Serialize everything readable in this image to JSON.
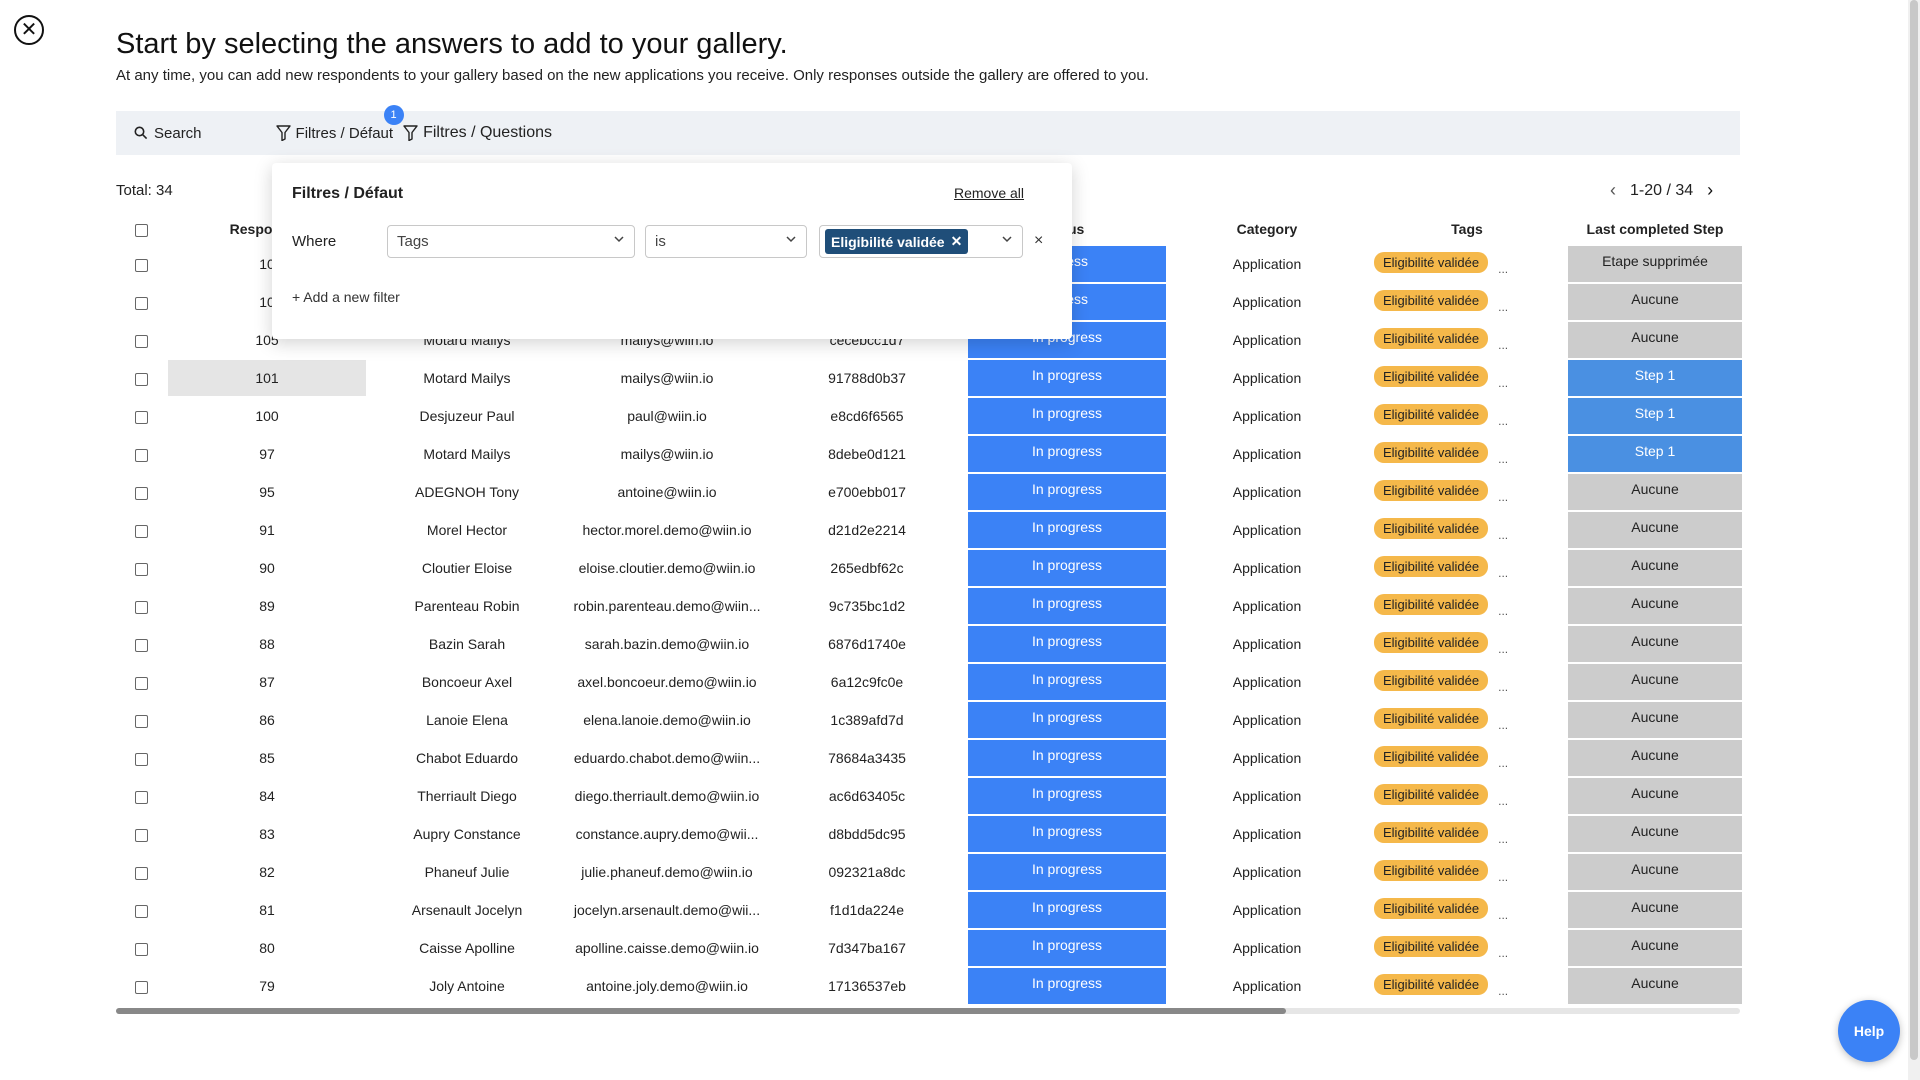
{
  "header": {
    "title": "Start by selecting the answers to add to your gallery.",
    "subtitle": "At any time, you can add new respondents to your gallery based on the new applications you receive. Only responses outside the gallery are offered to you."
  },
  "toolbar": {
    "search_label": "Search",
    "filter_defaut_label": "Filtres / Défaut",
    "filter_defaut_badge": "1",
    "filter_questions_label": "Filtres / Questions"
  },
  "total": "Total: 34",
  "pagination": {
    "range": "1-20 / 34"
  },
  "filter_panel": {
    "title": "Filtres / Défaut",
    "remove_all": "Remove all",
    "where": "Where",
    "field": "Tags",
    "operator": "is",
    "value_chip": "Eligibilité validée",
    "add_filter": "+ Add a new filter"
  },
  "table": {
    "columns": [
      "",
      "Responses",
      "",
      "",
      "",
      "Status",
      "Category",
      "Tags",
      "Last completed Step"
    ],
    "status_header_visible": "us",
    "rows": [
      {
        "id": "10",
        "name": "",
        "email": "",
        "code": "",
        "status": "ogress",
        "category": "Application",
        "tag": "Eligibilité validée",
        "step": "Etape supprimée",
        "step_style": "grey"
      },
      {
        "id": "10",
        "name": "",
        "email": "",
        "code": "",
        "status": "ogress",
        "category": "Application",
        "tag": "Eligibilité validée",
        "step": "Aucune",
        "step_style": "grey"
      },
      {
        "id": "105",
        "name": "Motard Mailys",
        "email": "mailys@wiin.io",
        "code": "cecebcc1d7",
        "status": "In progress",
        "category": "Application",
        "tag": "Eligibilité validée",
        "step": "Aucune",
        "step_style": "grey"
      },
      {
        "id": "101",
        "name": "Motard Mailys",
        "email": "mailys@wiin.io",
        "code": "91788d0b37",
        "status": "In progress",
        "category": "Application",
        "tag": "Eligibilité validée",
        "step": "Step 1",
        "step_style": "blue"
      },
      {
        "id": "100",
        "name": "Desjuzeur Paul",
        "email": "paul@wiin.io",
        "code": "e8cd6f6565",
        "status": "In progress",
        "category": "Application",
        "tag": "Eligibilité validée",
        "step": "Step 1",
        "step_style": "blue"
      },
      {
        "id": "97",
        "name": "Motard Mailys",
        "email": "mailys@wiin.io",
        "code": "8debe0d121",
        "status": "In progress",
        "category": "Application",
        "tag": "Eligibilité validée",
        "step": "Step 1",
        "step_style": "blue"
      },
      {
        "id": "95",
        "name": "ADEGNOH Tony",
        "email": "antoine@wiin.io",
        "code": "e700ebb017",
        "status": "In progress",
        "category": "Application",
        "tag": "Eligibilité validée",
        "step": "Aucune",
        "step_style": "grey"
      },
      {
        "id": "91",
        "name": "Morel Hector",
        "email": "hector.morel.demo@wiin.io",
        "code": "d21d2e2214",
        "status": "In progress",
        "category": "Application",
        "tag": "Eligibilité validée",
        "step": "Aucune",
        "step_style": "grey"
      },
      {
        "id": "90",
        "name": "Cloutier Eloise",
        "email": "eloise.cloutier.demo@wiin.io",
        "code": "265edbf62c",
        "status": "In progress",
        "category": "Application",
        "tag": "Eligibilité validée",
        "step": "Aucune",
        "step_style": "grey"
      },
      {
        "id": "89",
        "name": "Parenteau Robin",
        "email": "robin.parenteau.demo@wiin...",
        "code": "9c735bc1d2",
        "status": "In progress",
        "category": "Application",
        "tag": "Eligibilité validée",
        "step": "Aucune",
        "step_style": "grey"
      },
      {
        "id": "88",
        "name": "Bazin Sarah",
        "email": "sarah.bazin.demo@wiin.io",
        "code": "6876d1740e",
        "status": "In progress",
        "category": "Application",
        "tag": "Eligibilité validée",
        "step": "Aucune",
        "step_style": "grey"
      },
      {
        "id": "87",
        "name": "Boncoeur Axel",
        "email": "axel.boncoeur.demo@wiin.io",
        "code": "6a12c9fc0e",
        "status": "In progress",
        "category": "Application",
        "tag": "Eligibilité validée",
        "step": "Aucune",
        "step_style": "grey"
      },
      {
        "id": "86",
        "name": "Lanoie Elena",
        "email": "elena.lanoie.demo@wiin.io",
        "code": "1c389afd7d",
        "status": "In progress",
        "category": "Application",
        "tag": "Eligibilité validée",
        "step": "Aucune",
        "step_style": "grey"
      },
      {
        "id": "85",
        "name": "Chabot Eduardo",
        "email": "eduardo.chabot.demo@wiin...",
        "code": "78684a3435",
        "status": "In progress",
        "category": "Application",
        "tag": "Eligibilité validée",
        "step": "Aucune",
        "step_style": "grey"
      },
      {
        "id": "84",
        "name": "Therriault Diego",
        "email": "diego.therriault.demo@wiin.io",
        "code": "ac6d63405c",
        "status": "In progress",
        "category": "Application",
        "tag": "Eligibilité validée",
        "step": "Aucune",
        "step_style": "grey"
      },
      {
        "id": "83",
        "name": "Aupry Constance",
        "email": "constance.aupry.demo@wii...",
        "code": "d8bdd5dc95",
        "status": "In progress",
        "category": "Application",
        "tag": "Eligibilité validée",
        "step": "Aucune",
        "step_style": "grey"
      },
      {
        "id": "82",
        "name": "Phaneuf Julie",
        "email": "julie.phaneuf.demo@wiin.io",
        "code": "092321a8dc",
        "status": "In progress",
        "category": "Application",
        "tag": "Eligibilité validée",
        "step": "Aucune",
        "step_style": "grey"
      },
      {
        "id": "81",
        "name": "Arsenault Jocelyn",
        "email": "jocelyn.arsenault.demo@wii...",
        "code": "f1d1da224e",
        "status": "In progress",
        "category": "Application",
        "tag": "Eligibilité validée",
        "step": "Aucune",
        "step_style": "grey"
      },
      {
        "id": "80",
        "name": "Caisse Apolline",
        "email": "apolline.caisse.demo@wiin.io",
        "code": "7d347ba167",
        "status": "In progress",
        "category": "Application",
        "tag": "Eligibilité validée",
        "step": "Aucune",
        "step_style": "grey"
      },
      {
        "id": "79",
        "name": "Joly Antoine",
        "email": "antoine.joly.demo@wiin.io",
        "code": "17136537eb",
        "status": "In progress",
        "category": "Application",
        "tag": "Eligibilité validée",
        "step": "Aucune",
        "step_style": "grey"
      }
    ],
    "more_label": "..."
  },
  "help": {
    "label": "Help"
  },
  "colors": {
    "status_blue": "#3b82f6",
    "step_blue": "#4a90e2",
    "step_grey": "#cccccc",
    "tag_orange": "#f5b84a",
    "chip_navy": "#1f4e79"
  },
  "icons": {
    "close": "circle-x-icon",
    "search": "search-icon",
    "filter": "funnel-icon",
    "prev": "chevron-left-icon",
    "next": "chevron-right-icon"
  }
}
